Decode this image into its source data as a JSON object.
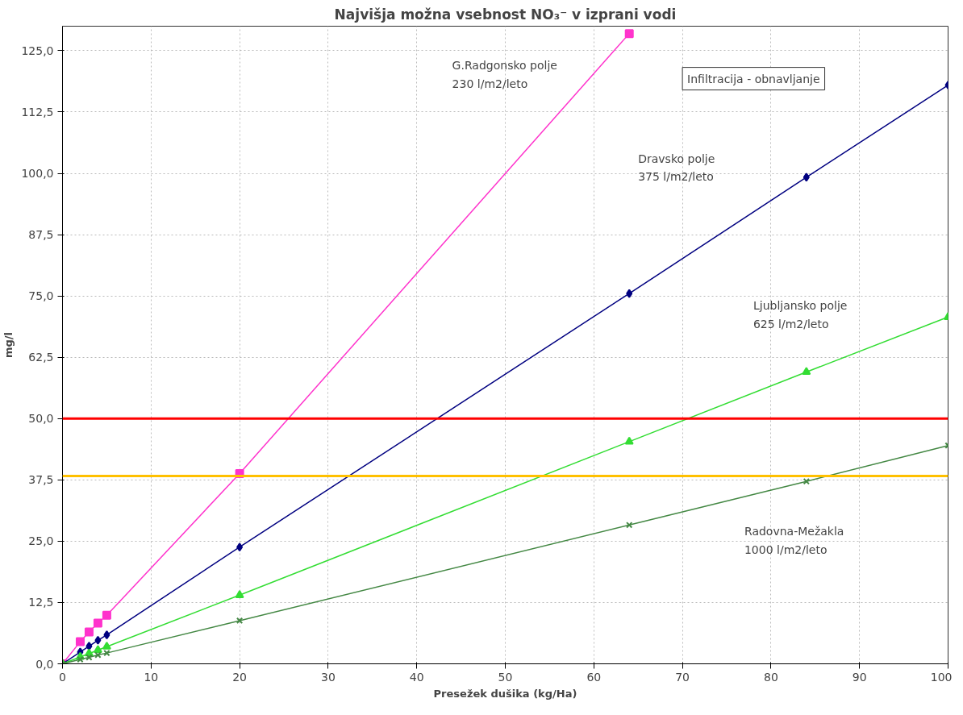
{
  "chart_data": {
    "type": "line",
    "title": "Najvišja možna vsebnost NO₃⁻ v izprani vodi",
    "xlabel": "Presežek dušika (kg/Ha)",
    "ylabel": "mg/l",
    "xlim": [
      0,
      100
    ],
    "xticks": [
      0,
      10,
      20,
      30,
      40,
      50,
      60,
      70,
      80,
      90,
      100
    ],
    "ylim": [
      0,
      130
    ],
    "yticks": [
      {
        "value": 0,
        "label": "0,0"
      },
      {
        "value": 12.5,
        "label": "12,5"
      },
      {
        "value": 25,
        "label": "25,0"
      },
      {
        "value": 37.5,
        "label": "37,5"
      },
      {
        "value": 50,
        "label": "50,0"
      },
      {
        "value": 62.5,
        "label": "62,5"
      },
      {
        "value": 75,
        "label": "75,0"
      },
      {
        "value": 87.5,
        "label": "87,5"
      },
      {
        "value": 100,
        "label": "100,0"
      },
      {
        "value": 112.5,
        "label": "112,5"
      },
      {
        "value": 125,
        "label": "125,0"
      }
    ],
    "grid": true,
    "line_style": "solid",
    "series": [
      {
        "color": "#ff33cc",
        "marker": "square",
        "x": [
          0,
          2,
          3,
          4,
          5,
          20,
          64
        ],
        "values": [
          0,
          4.5,
          6.5,
          8.3,
          9.9,
          38.8,
          128.5
        ]
      },
      {
        "color": "#000080",
        "marker": "diamond",
        "x": [
          0,
          2,
          3,
          4,
          5,
          20,
          64,
          84,
          100
        ],
        "values": [
          0,
          2.4,
          3.6,
          4.8,
          5.9,
          23.8,
          75.5,
          99.2,
          118.0
        ]
      },
      {
        "color": "#33dd33",
        "marker": "triangle",
        "x": [
          0,
          2,
          3,
          4,
          5,
          20,
          64,
          84,
          100
        ],
        "values": [
          0,
          1.4,
          2.1,
          2.8,
          3.5,
          14.0,
          45.3,
          59.5,
          70.7
        ]
      },
      {
        "color": "#448844",
        "marker": "cross",
        "x": [
          0,
          2,
          3,
          4,
          5,
          20,
          64,
          84,
          100
        ],
        "values": [
          0,
          0.9,
          1.3,
          1.8,
          2.2,
          8.8,
          28.3,
          37.2,
          44.5
        ]
      }
    ],
    "ref_lines": [
      {
        "axis": "y",
        "value": 50,
        "label": null,
        "color": "#ff0000"
      },
      {
        "axis": "y",
        "value": 38.3,
        "label": null,
        "color": "#ffc000"
      }
    ],
    "annotations": [
      "G.Radgonsko polje\n230 l/m2/leto",
      "Dravsko polje\n375 l/m2/leto",
      "Ljubljansko polje\n625 l/m2/leto",
      "Radovna-Mežakla\n1000 l/m2/leto",
      "Infiltracija - obnavljanje"
    ]
  }
}
